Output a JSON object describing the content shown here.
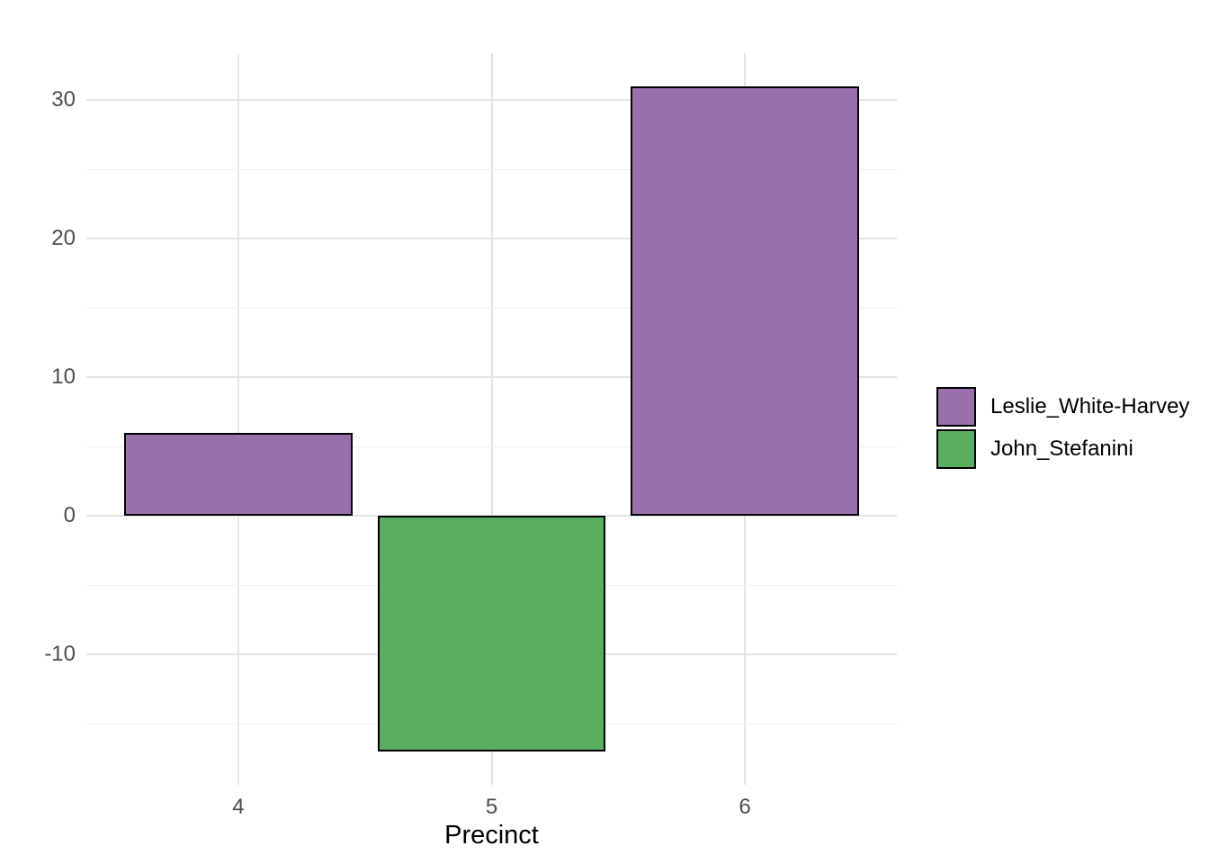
{
  "chart_data": {
    "type": "bar",
    "title": "",
    "xlabel": "Precinct",
    "ylabel": "",
    "categories": [
      "4",
      "5",
      "6"
    ],
    "bars": [
      {
        "category": "4",
        "series": "Leslie_White-Harvey",
        "value": 6
      },
      {
        "category": "5",
        "series": "John_Stefanini",
        "value": -17
      },
      {
        "category": "6",
        "series": "Leslie_White-Harvey",
        "value": 31
      }
    ],
    "series": [
      {
        "name": "Leslie_White-Harvey",
        "color": "#9970AB"
      },
      {
        "name": "John_Stefanini",
        "color": "#5AAE61"
      }
    ],
    "yticks": [
      30,
      20,
      10,
      0,
      -10
    ],
    "yminor": [
      25,
      15,
      5,
      -5,
      -15
    ],
    "ylim": [
      -19.4,
      33.4
    ],
    "bar_width_fraction": 0.9,
    "grid": true,
    "legend_position": "right",
    "theme": {
      "background": "#FFFFFF",
      "grid_major_color": "#E4E4E4",
      "grid_minor_color": "#EFEFEF",
      "axis_text_color": "#4D4D4D",
      "axis_title_color": "#000000",
      "bar_border_color": "#000000"
    }
  }
}
